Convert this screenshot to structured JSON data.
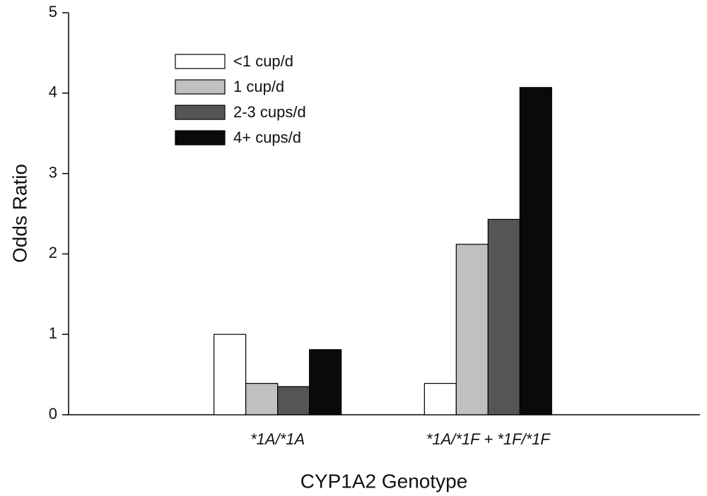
{
  "chart_data": {
    "type": "bar",
    "categories": [
      "*1A/*1A",
      "*1A/*1F + *1F/*1F"
    ],
    "series": [
      {
        "name": "<1 cup/d",
        "color": "#ffffff",
        "values": [
          1.0,
          0.39
        ]
      },
      {
        "name": "1 cup/d",
        "color": "#c0c0c0",
        "values": [
          0.39,
          2.12
        ]
      },
      {
        "name": "2-3 cups/d",
        "color": "#555555",
        "values": [
          0.35,
          2.43
        ]
      },
      {
        "name": "4+ cups/d",
        "color": "#0a0a0a",
        "values": [
          0.81,
          4.07
        ]
      }
    ],
    "xlabel": "CYP1A2 Genotype",
    "ylabel": "Odds Ratio",
    "ylim": [
      0,
      5
    ],
    "yticks": [
      0,
      1,
      2,
      3,
      4,
      5
    ],
    "legend": "upper-left"
  }
}
